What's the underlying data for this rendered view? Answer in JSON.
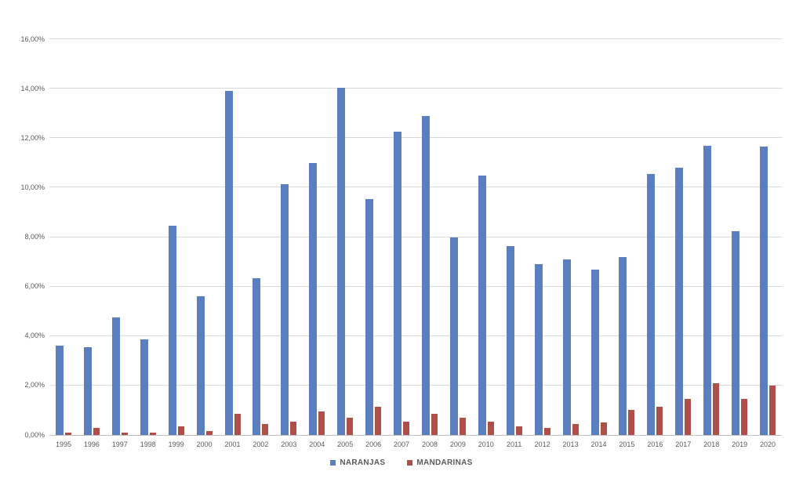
{
  "chart_data": {
    "type": "bar",
    "title": "",
    "xlabel": "",
    "ylabel": "",
    "categories": [
      "1995",
      "1996",
      "1997",
      "1998",
      "1999",
      "2000",
      "2001",
      "2002",
      "2003",
      "2004",
      "2005",
      "2006",
      "2007",
      "2008",
      "2009",
      "2010",
      "2011",
      "2012",
      "2013",
      "2014",
      "2015",
      "2016",
      "2017",
      "2018",
      "2019",
      "2020"
    ],
    "series": [
      {
        "name": "NARANJAS",
        "color": "#5B7FBE",
        "values": [
          3.6,
          3.55,
          4.75,
          3.85,
          8.45,
          5.6,
          13.9,
          6.35,
          10.15,
          11.0,
          14.05,
          9.55,
          12.25,
          12.9,
          8.0,
          10.5,
          7.65,
          6.9,
          7.1,
          6.7,
          7.2,
          10.55,
          10.8,
          11.7,
          8.25,
          11.65
        ]
      },
      {
        "name": "MANDARINAS",
        "color": "#AE4F4A",
        "values": [
          0.1,
          0.3,
          0.1,
          0.1,
          0.35,
          0.15,
          0.85,
          0.45,
          0.55,
          0.95,
          0.7,
          1.15,
          0.55,
          0.85,
          0.7,
          0.55,
          0.35,
          0.3,
          0.45,
          0.5,
          1.0,
          1.15,
          1.45,
          2.1,
          1.45,
          2.0
        ]
      }
    ],
    "ylim": [
      0,
      16
    ],
    "ytick_step": 2,
    "ytick_labels": [
      "0,00%",
      "2,00%",
      "4,00%",
      "6,00%",
      "8,00%",
      "10,00%",
      "12,00%",
      "14,00%",
      "16,00%"
    ],
    "grid": true,
    "legend_position": "bottom"
  },
  "colors": {
    "gridline": "#D9D9D9",
    "axis_line": "#BFBFBF",
    "tick_text": "#595959",
    "background": "#FFFFFF"
  }
}
